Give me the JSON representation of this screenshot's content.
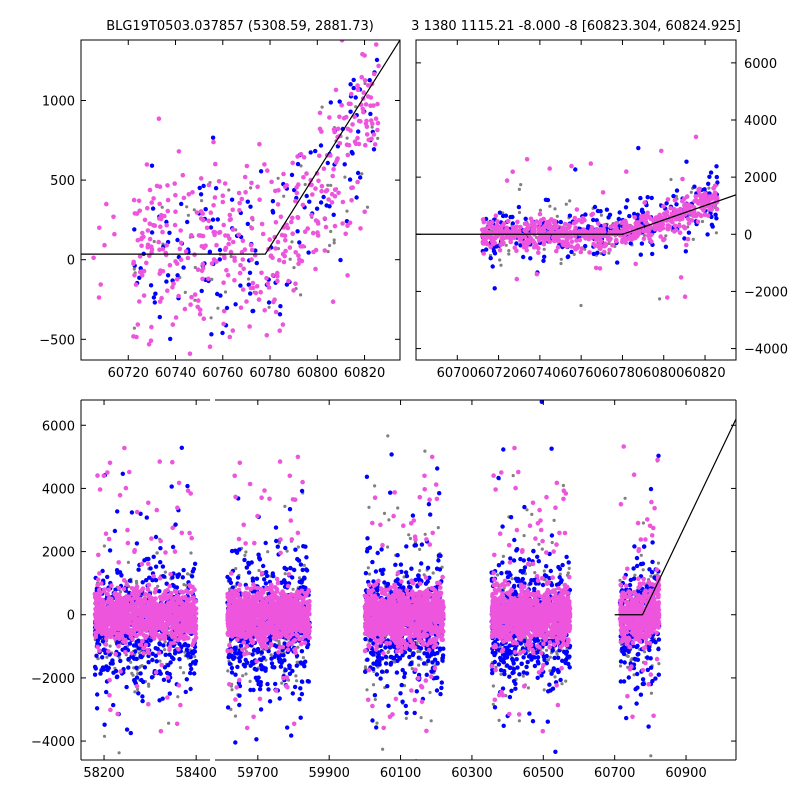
{
  "titles": {
    "left": "BLG19T0503.037857 (5308.59, 2881.73)",
    "right": "3 1380 1115.21 -8.000 -8 [60823.304, 60824.925]"
  },
  "colors": {
    "gray": "#808080",
    "blue": "#0000ff",
    "magenta": "#ee55dd",
    "line": "#000000"
  },
  "chart_data": [
    {
      "name": "top-left-zoom",
      "type": "scatter",
      "xlim": [
        60700,
        60835
      ],
      "ylim": [
        -630,
        1380
      ],
      "xticks": [
        60720,
        60740,
        60760,
        60780,
        60800,
        60820
      ],
      "yticks": [
        -500,
        0,
        500,
        1000
      ],
      "ytick_side": "left",
      "series": [
        {
          "name": "gray",
          "values_desc": "sparse points",
          "x_range": [
            60720,
            60825
          ],
          "y_center": 100,
          "y_spread": 350
        },
        {
          "name": "blue",
          "x_range": [
            60725,
            60825
          ],
          "y_center": 150,
          "y_spread": 350
        },
        {
          "name": "magenta",
          "x_range": [
            60705,
            60826
          ],
          "y_center": 200,
          "y_spread": 330
        }
      ],
      "model_line": {
        "x": [
          60700,
          60778,
          60835
        ],
        "y": [
          35,
          35,
          1380
        ]
      }
    },
    {
      "name": "top-right",
      "type": "scatter",
      "xlim": [
        60680,
        60835
      ],
      "ylim": [
        -4400,
        6800
      ],
      "xticks": [
        60700,
        60720,
        60740,
        60760,
        60780,
        60800,
        60820
      ],
      "yticks": [
        -4000,
        -2000,
        0,
        2000,
        4000,
        6000
      ],
      "ytick_side": "right",
      "series": [
        {
          "name": "gray",
          "x_range": [
            60710,
            60826
          ],
          "y_center": 0,
          "y_spread": 600
        },
        {
          "name": "blue",
          "x_range": [
            60710,
            60826
          ],
          "y_center": 0,
          "y_spread": 600
        },
        {
          "name": "magenta",
          "x_range": [
            60710,
            60826
          ],
          "y_center": 100,
          "y_spread": 400
        }
      ],
      "model_line": {
        "x": [
          60680,
          60780,
          60835
        ],
        "y": [
          0,
          0,
          1380
        ]
      }
    },
    {
      "name": "bottom-full",
      "type": "scatter",
      "xlim": [
        58150,
        61040
      ],
      "ylim": [
        -4600,
        6800
      ],
      "broken_axis_gap": [
        58430,
        59580
      ],
      "xticks": [
        58200,
        58400,
        59700,
        59900,
        60100,
        60300,
        60500,
        60700,
        60900
      ],
      "yticks": [
        -4000,
        -2000,
        0,
        2000,
        4000,
        6000
      ],
      "ytick_side": "left",
      "seasons": [
        [
          58180,
          58400
        ],
        [
          59615,
          59845
        ],
        [
          60000,
          60220
        ],
        [
          60355,
          60575
        ],
        [
          60715,
          60825
        ]
      ],
      "series": [
        {
          "name": "gray",
          "y_center": -200,
          "y_spread": 400
        },
        {
          "name": "blue",
          "y_center": -300,
          "y_spread": 500
        },
        {
          "name": "magenta",
          "y_center": 0,
          "y_spread": 350
        }
      ],
      "model_line": {
        "x": [
          60700,
          60778,
          61040
        ],
        "y": [
          0,
          0,
          6200
        ]
      }
    }
  ]
}
